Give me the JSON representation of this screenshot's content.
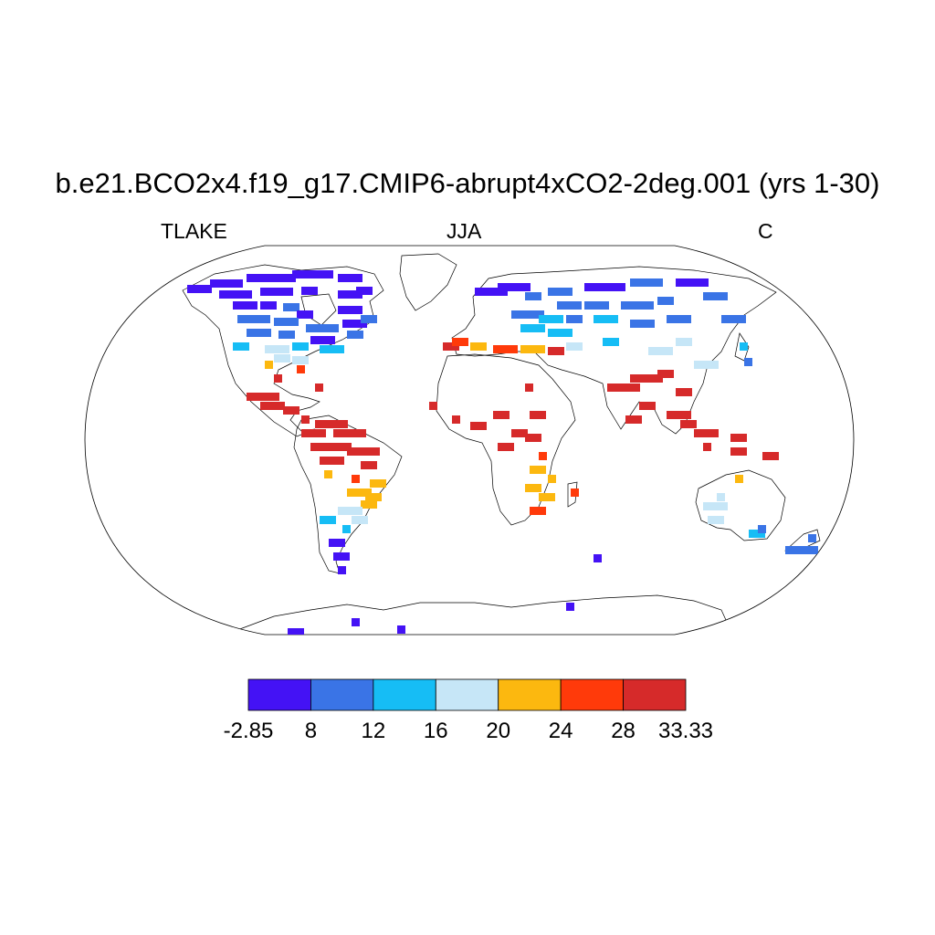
{
  "title": "b.e21.BCO2x4.f19_g17.CMIP6-abrupt4xCO2-2deg.001 (yrs 1-30)",
  "variable": "TLAKE",
  "season": "JJA",
  "units": "C",
  "colorbar": {
    "colors": [
      "#4412f5",
      "#3a74e6",
      "#16bdf5",
      "#c6e6f7",
      "#fcb80f",
      "#ff3a0a",
      "#d62a2a"
    ],
    "labels": [
      "-2.85",
      "8",
      "12",
      "16",
      "20",
      "24",
      "28",
      "33.33"
    ]
  },
  "map": {
    "projection": "Robinson",
    "ocean_color": "#ffffff",
    "coastline_color": "#000000"
  }
}
